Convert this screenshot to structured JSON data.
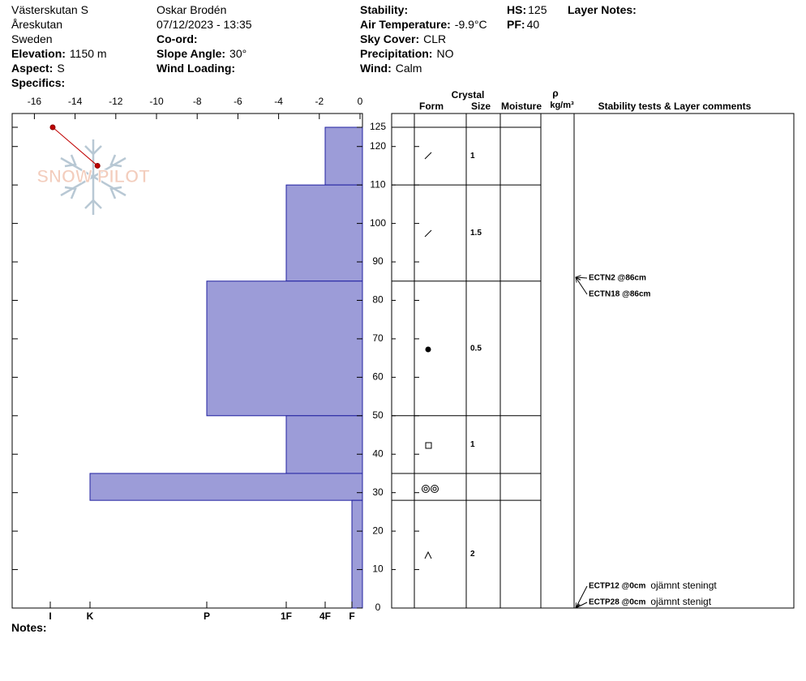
{
  "header": {
    "location": "Västerskutan S",
    "area": "Åreskutan",
    "country": "Sweden",
    "elevation_label": "Elevation:",
    "elevation": "1150 m",
    "aspect_label": "Aspect:",
    "aspect": "S",
    "specifics_label": "Specifics:",
    "observer": "Oskar Brodén",
    "datetime": "07/12/2023 - 13:35",
    "coord_label": "Co-ord:",
    "slope_label": "Slope Angle:",
    "slope": "30°",
    "wind_loading_label": "Wind Loading:",
    "stability_label": "Stability:",
    "air_temp_label": "Air Temperature:",
    "air_temp": "-9.9°C",
    "sky_label": "Sky Cover:",
    "sky": "CLR",
    "precip_label": "Precipitation:",
    "precip": "NO",
    "wind_label": "Wind:",
    "wind": "Calm",
    "hs_label": "HS:",
    "hs": 125,
    "pf_label": "PF:",
    "pf": 40,
    "layer_notes_label": "Layer Notes:",
    "notes_label": "Notes:"
  },
  "chart_data": {
    "type": "snow-profile",
    "logo": "SNOW PILOT",
    "ylim": [
      0,
      125
    ],
    "yticks": [
      0,
      10,
      20,
      30,
      40,
      50,
      60,
      70,
      80,
      90,
      100,
      110,
      120,
      125
    ],
    "temperature": {
      "xlim": [
        -17,
        0
      ],
      "xticks": [
        -16,
        -14,
        -12,
        -10,
        -8,
        -6,
        -4,
        -2,
        0
      ],
      "x": [
        -15.1,
        -12.9
      ],
      "y": [
        125,
        115
      ],
      "color": "#c00000"
    },
    "hardness_ticks": [
      "I",
      "K",
      "P",
      "1F",
      "4F",
      "F"
    ],
    "bar_color": "#9c9cd8",
    "columns": {
      "crystal": "Crystal",
      "form": "Form",
      "size": "Size",
      "moisture": "Moisture",
      "rho": "ρ",
      "density_unit": "kg/m³",
      "comments": "Stability tests & Layer comments"
    },
    "layers": [
      {
        "top": 125,
        "bottom": 110,
        "hardness": "4F",
        "size": 1
      },
      {
        "top": 110,
        "bottom": 85,
        "hardness": "1F",
        "size": 1.5
      },
      {
        "top": 85,
        "bottom": 50,
        "hardness": "P",
        "size": 0.5
      },
      {
        "top": 50,
        "bottom": 35,
        "hardness": "1F",
        "size": 1
      },
      {
        "top": 35,
        "bottom": 28,
        "hardness": "K"
      },
      {
        "top": 28,
        "bottom": 0,
        "hardness": "F",
        "size": 2
      }
    ],
    "stability_tests": [
      {
        "test": "ECTN2 @86cm",
        "height": 86
      },
      {
        "test": "ECTN18 @86cm",
        "height": 86
      },
      {
        "test": "ECTP12 @0cm",
        "height": 0,
        "comment": "ojämnt steningt"
      },
      {
        "test": "ECTP28 @0cm",
        "height": 0,
        "comment": "ojämnt stenigt"
      }
    ]
  }
}
